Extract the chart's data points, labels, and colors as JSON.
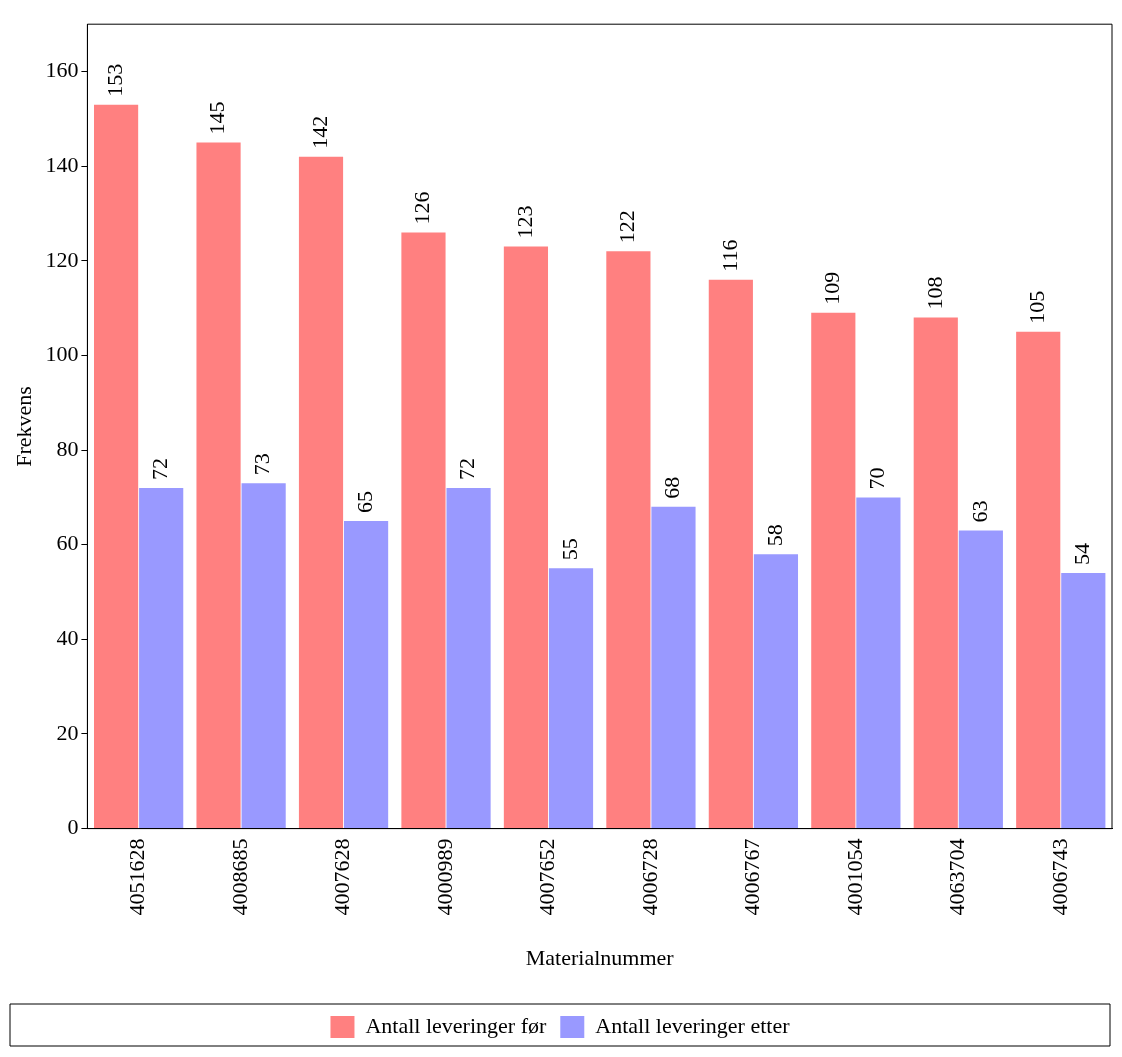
{
  "chart_data": {
    "type": "bar",
    "xlabel": "Materialnummer",
    "ylabel": "Frekvens",
    "categories": [
      "4051628",
      "4008685",
      "4007628",
      "4000989",
      "4007652",
      "4006728",
      "4006767",
      "4001054",
      "4063704",
      "4006743"
    ],
    "series": [
      {
        "name": "Antall leveringer før",
        "color": "#ff8080",
        "values": [
          153,
          145,
          142,
          126,
          123,
          122,
          116,
          109,
          108,
          105
        ]
      },
      {
        "name": "Antall leveringer etter",
        "color": "#9999ff",
        "values": [
          72,
          73,
          65,
          72,
          55,
          68,
          58,
          70,
          63,
          54
        ]
      }
    ],
    "ylim": [
      0,
      170
    ],
    "yticks": [
      0,
      20,
      40,
      60,
      80,
      100,
      120,
      140,
      160
    ],
    "data_labels": true,
    "grid": false,
    "legend": "bottom"
  }
}
